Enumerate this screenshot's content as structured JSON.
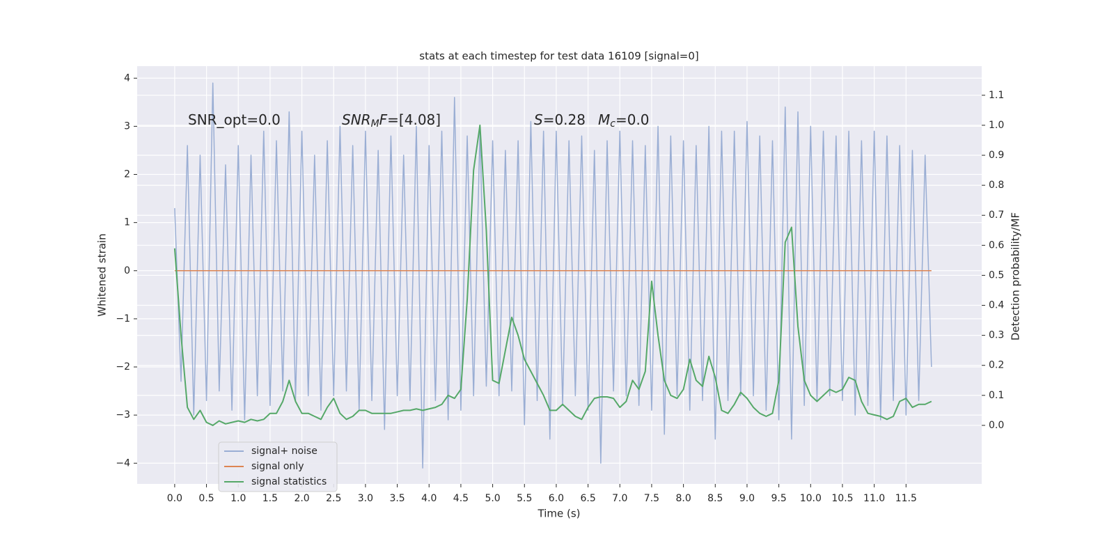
{
  "chart_data": {
    "type": "line",
    "title": "stats at each timestep for test data 16109 [signal=0]",
    "xlabel": "Time (s)",
    "ylabel": "Whitened strain",
    "y2label": "Detection probability/MF",
    "annotations": [
      [
        {
          "text": "SNR_opt=0.0",
          "style": "normal"
        }
      ],
      [
        {
          "text": "SNR",
          "style": "italic"
        },
        {
          "text": "M",
          "style": "sub"
        },
        {
          "text": "F",
          "style": "italic"
        },
        {
          "text": "=[4.08]",
          "style": "normal"
        }
      ],
      [
        {
          "text": "S",
          "style": "italic"
        },
        {
          "text": "=0.28",
          "style": "normal"
        }
      ],
      [
        {
          "text": "M",
          "style": "italic"
        },
        {
          "text": "c",
          "style": "sub"
        },
        {
          "text": "=0.0",
          "style": "normal"
        }
      ]
    ],
    "x": [
      0,
      0.1,
      0.2,
      0.3,
      0.4,
      0.5,
      0.6,
      0.7,
      0.8,
      0.9,
      1,
      1.1,
      1.2,
      1.3,
      1.4,
      1.5,
      1.6,
      1.7,
      1.8,
      1.9,
      2,
      2.1,
      2.2,
      2.3,
      2.4,
      2.5,
      2.6,
      2.7,
      2.8,
      2.9,
      3,
      3.1,
      3.2,
      3.3,
      3.4,
      3.5,
      3.6,
      3.7,
      3.8,
      3.9,
      4,
      4.1,
      4.2,
      4.3,
      4.4,
      4.5,
      4.6,
      4.7,
      4.8,
      4.9,
      5,
      5.1,
      5.2,
      5.3,
      5.4,
      5.5,
      5.6,
      5.7,
      5.8,
      5.9,
      6,
      6.1,
      6.2,
      6.3,
      6.4,
      6.5,
      6.6,
      6.7,
      6.8,
      6.9,
      7,
      7.1,
      7.2,
      7.3,
      7.4,
      7.5,
      7.6,
      7.7,
      7.8,
      7.9,
      8,
      8.1,
      8.2,
      8.3,
      8.4,
      8.5,
      8.6,
      8.7,
      8.8,
      8.9,
      9,
      9.1,
      9.2,
      9.3,
      9.4,
      9.5,
      9.6,
      9.7,
      9.8,
      9.9,
      10,
      10.1,
      10.2,
      10.3,
      10.4,
      10.5,
      10.6,
      10.7,
      10.8,
      10.9,
      11,
      11.1,
      11.2,
      11.3,
      11.4,
      11.5,
      11.6,
      11.7,
      11.8,
      11.9
    ],
    "series": [
      {
        "name": "signal+ noise",
        "color": "#9aaed4",
        "values": [
          1.3,
          -2.3,
          2.6,
          -3.0,
          2.4,
          -2.7,
          3.9,
          -2.5,
          2.2,
          -2.9,
          2.6,
          -3.1,
          2.4,
          -2.6,
          2.9,
          -2.8,
          2.7,
          -2.5,
          3.3,
          -2.7,
          2.9,
          -2.6,
          2.4,
          -2.9,
          2.7,
          -2.6,
          3.0,
          -2.5,
          2.6,
          -2.9,
          2.9,
          -2.7,
          2.5,
          -3.3,
          2.8,
          -2.6,
          2.4,
          -2.7,
          3.0,
          -4.1,
          2.6,
          -2.7,
          2.9,
          -3.1,
          3.6,
          -2.9,
          2.8,
          -2.6,
          2.9,
          -2.4,
          2.7,
          -2.6,
          2.5,
          -2.5,
          2.7,
          -3.2,
          3.1,
          -2.7,
          2.9,
          -3.5,
          2.9,
          -2.8,
          2.7,
          -2.6,
          2.8,
          -2.9,
          2.5,
          -4.0,
          2.7,
          -2.5,
          2.9,
          -2.6,
          2.7,
          -2.8,
          2.6,
          -2.9,
          3.0,
          -3.4,
          2.8,
          -2.6,
          2.7,
          -2.9,
          2.6,
          -2.7,
          3.0,
          -3.5,
          2.9,
          -2.7,
          2.9,
          -2.6,
          3.1,
          -2.6,
          2.8,
          -2.9,
          2.7,
          -3.1,
          3.4,
          -3.5,
          3.3,
          -2.8,
          3.0,
          -2.7,
          2.9,
          -2.6,
          2.8,
          -2.7,
          2.9,
          -3.0,
          2.7,
          -2.8,
          2.9,
          -3.1,
          2.8,
          -2.7,
          2.6,
          -3.0,
          2.5,
          -2.7,
          2.4,
          -2.0
        ]
      },
      {
        "name": "signal only",
        "color": "#dd8452",
        "values": [
          0,
          0,
          0,
          0,
          0,
          0,
          0,
          0,
          0,
          0,
          0,
          0,
          0,
          0,
          0,
          0,
          0,
          0,
          0,
          0,
          0,
          0,
          0,
          0,
          0,
          0,
          0,
          0,
          0,
          0,
          0,
          0,
          0,
          0,
          0,
          0,
          0,
          0,
          0,
          0,
          0,
          0,
          0,
          0,
          0,
          0,
          0,
          0,
          0,
          0,
          0,
          0,
          0,
          0,
          0,
          0,
          0,
          0,
          0,
          0,
          0,
          0,
          0,
          0,
          0,
          0,
          0,
          0,
          0,
          0,
          0,
          0,
          0,
          0,
          0,
          0,
          0,
          0,
          0,
          0,
          0,
          0,
          0,
          0,
          0,
          0,
          0,
          0,
          0,
          0,
          0,
          0,
          0,
          0,
          0,
          0,
          0,
          0,
          0,
          0,
          0,
          0,
          0,
          0,
          0,
          0,
          0,
          0,
          0,
          0,
          0,
          0,
          0,
          0,
          0,
          0,
          0,
          0,
          0,
          0
        ]
      },
      {
        "name": "signal statistics",
        "color": "#55a868",
        "axis": "y2",
        "values": [
          0.59,
          0.3,
          0.06,
          0.02,
          0.05,
          0.01,
          0,
          0.015,
          0.005,
          0.01,
          0.015,
          0.01,
          0.02,
          0.015,
          0.02,
          0.04,
          0.04,
          0.08,
          0.15,
          0.08,
          0.04,
          0.04,
          0.03,
          0.02,
          0.06,
          0.09,
          0.04,
          0.02,
          0.03,
          0.05,
          0.05,
          0.04,
          0.04,
          0.04,
          0.04,
          0.045,
          0.05,
          0.05,
          0.055,
          0.05,
          0.055,
          0.06,
          0.07,
          0.1,
          0.09,
          0.12,
          0.42,
          0.85,
          1,
          0.65,
          0.15,
          0.14,
          0.25,
          0.36,
          0.3,
          0.22,
          0.18,
          0.14,
          0.1,
          0.05,
          0.05,
          0.07,
          0.05,
          0.03,
          0.02,
          0.06,
          0.09,
          0.095,
          0.095,
          0.09,
          0.06,
          0.08,
          0.15,
          0.12,
          0.18,
          0.48,
          0.3,
          0.15,
          0.1,
          0.09,
          0.12,
          0.22,
          0.15,
          0.13,
          0.23,
          0.16,
          0.05,
          0.04,
          0.07,
          0.11,
          0.09,
          0.06,
          0.04,
          0.03,
          0.04,
          0.15,
          0.61,
          0.66,
          0.33,
          0.15,
          0.1,
          0.08,
          0.1,
          0.12,
          0.11,
          0.12,
          0.16,
          0.15,
          0.08,
          0.04,
          0.035,
          0.03,
          0.02,
          0.03,
          0.08,
          0.09,
          0.06,
          0.07,
          0.07,
          0.08
        ]
      }
    ],
    "xlim": [
      -0.59,
      12.69
    ],
    "xticks": [
      {
        "value": 0,
        "label": "0.0"
      },
      0.5,
      {
        "value": 1,
        "label": "1.0"
      },
      1.5,
      {
        "value": 2,
        "label": "2.0"
      },
      2.5,
      {
        "value": 3,
        "label": "3.0"
      },
      3.5,
      {
        "value": 4,
        "label": "4.0"
      },
      4.5,
      {
        "value": 5,
        "label": "5.0"
      },
      5.5,
      {
        "value": 6,
        "label": "6.0"
      },
      6.5,
      {
        "value": 7,
        "label": "7.0"
      },
      7.5,
      {
        "value": 8,
        "label": "8.0"
      },
      8.5,
      {
        "value": 9,
        "label": "9.0"
      },
      9.5,
      {
        "value": 10,
        "label": "10.0"
      },
      10.5,
      {
        "value": 11,
        "label": "11.0"
      },
      11.5
    ],
    "ylim": [
      -4.43,
      4.25
    ],
    "yticks": [
      {
        "value": -4,
        "label": "−4"
      },
      {
        "value": -3,
        "label": "−3"
      },
      {
        "value": -2,
        "label": "−2"
      },
      {
        "value": -1,
        "label": "−1"
      },
      0,
      1,
      2,
      3,
      4
    ],
    "y2lim": [
      -0.195,
      1.197
    ],
    "y2ticks": [
      {
        "value": 0,
        "label": "0.0"
      },
      0.1,
      0.2,
      0.3,
      0.4,
      0.5,
      0.6,
      0.7,
      0.8,
      0.9,
      {
        "value": 1,
        "label": "1.0"
      },
      1.1
    ],
    "grid": true,
    "legend": "lower left"
  }
}
